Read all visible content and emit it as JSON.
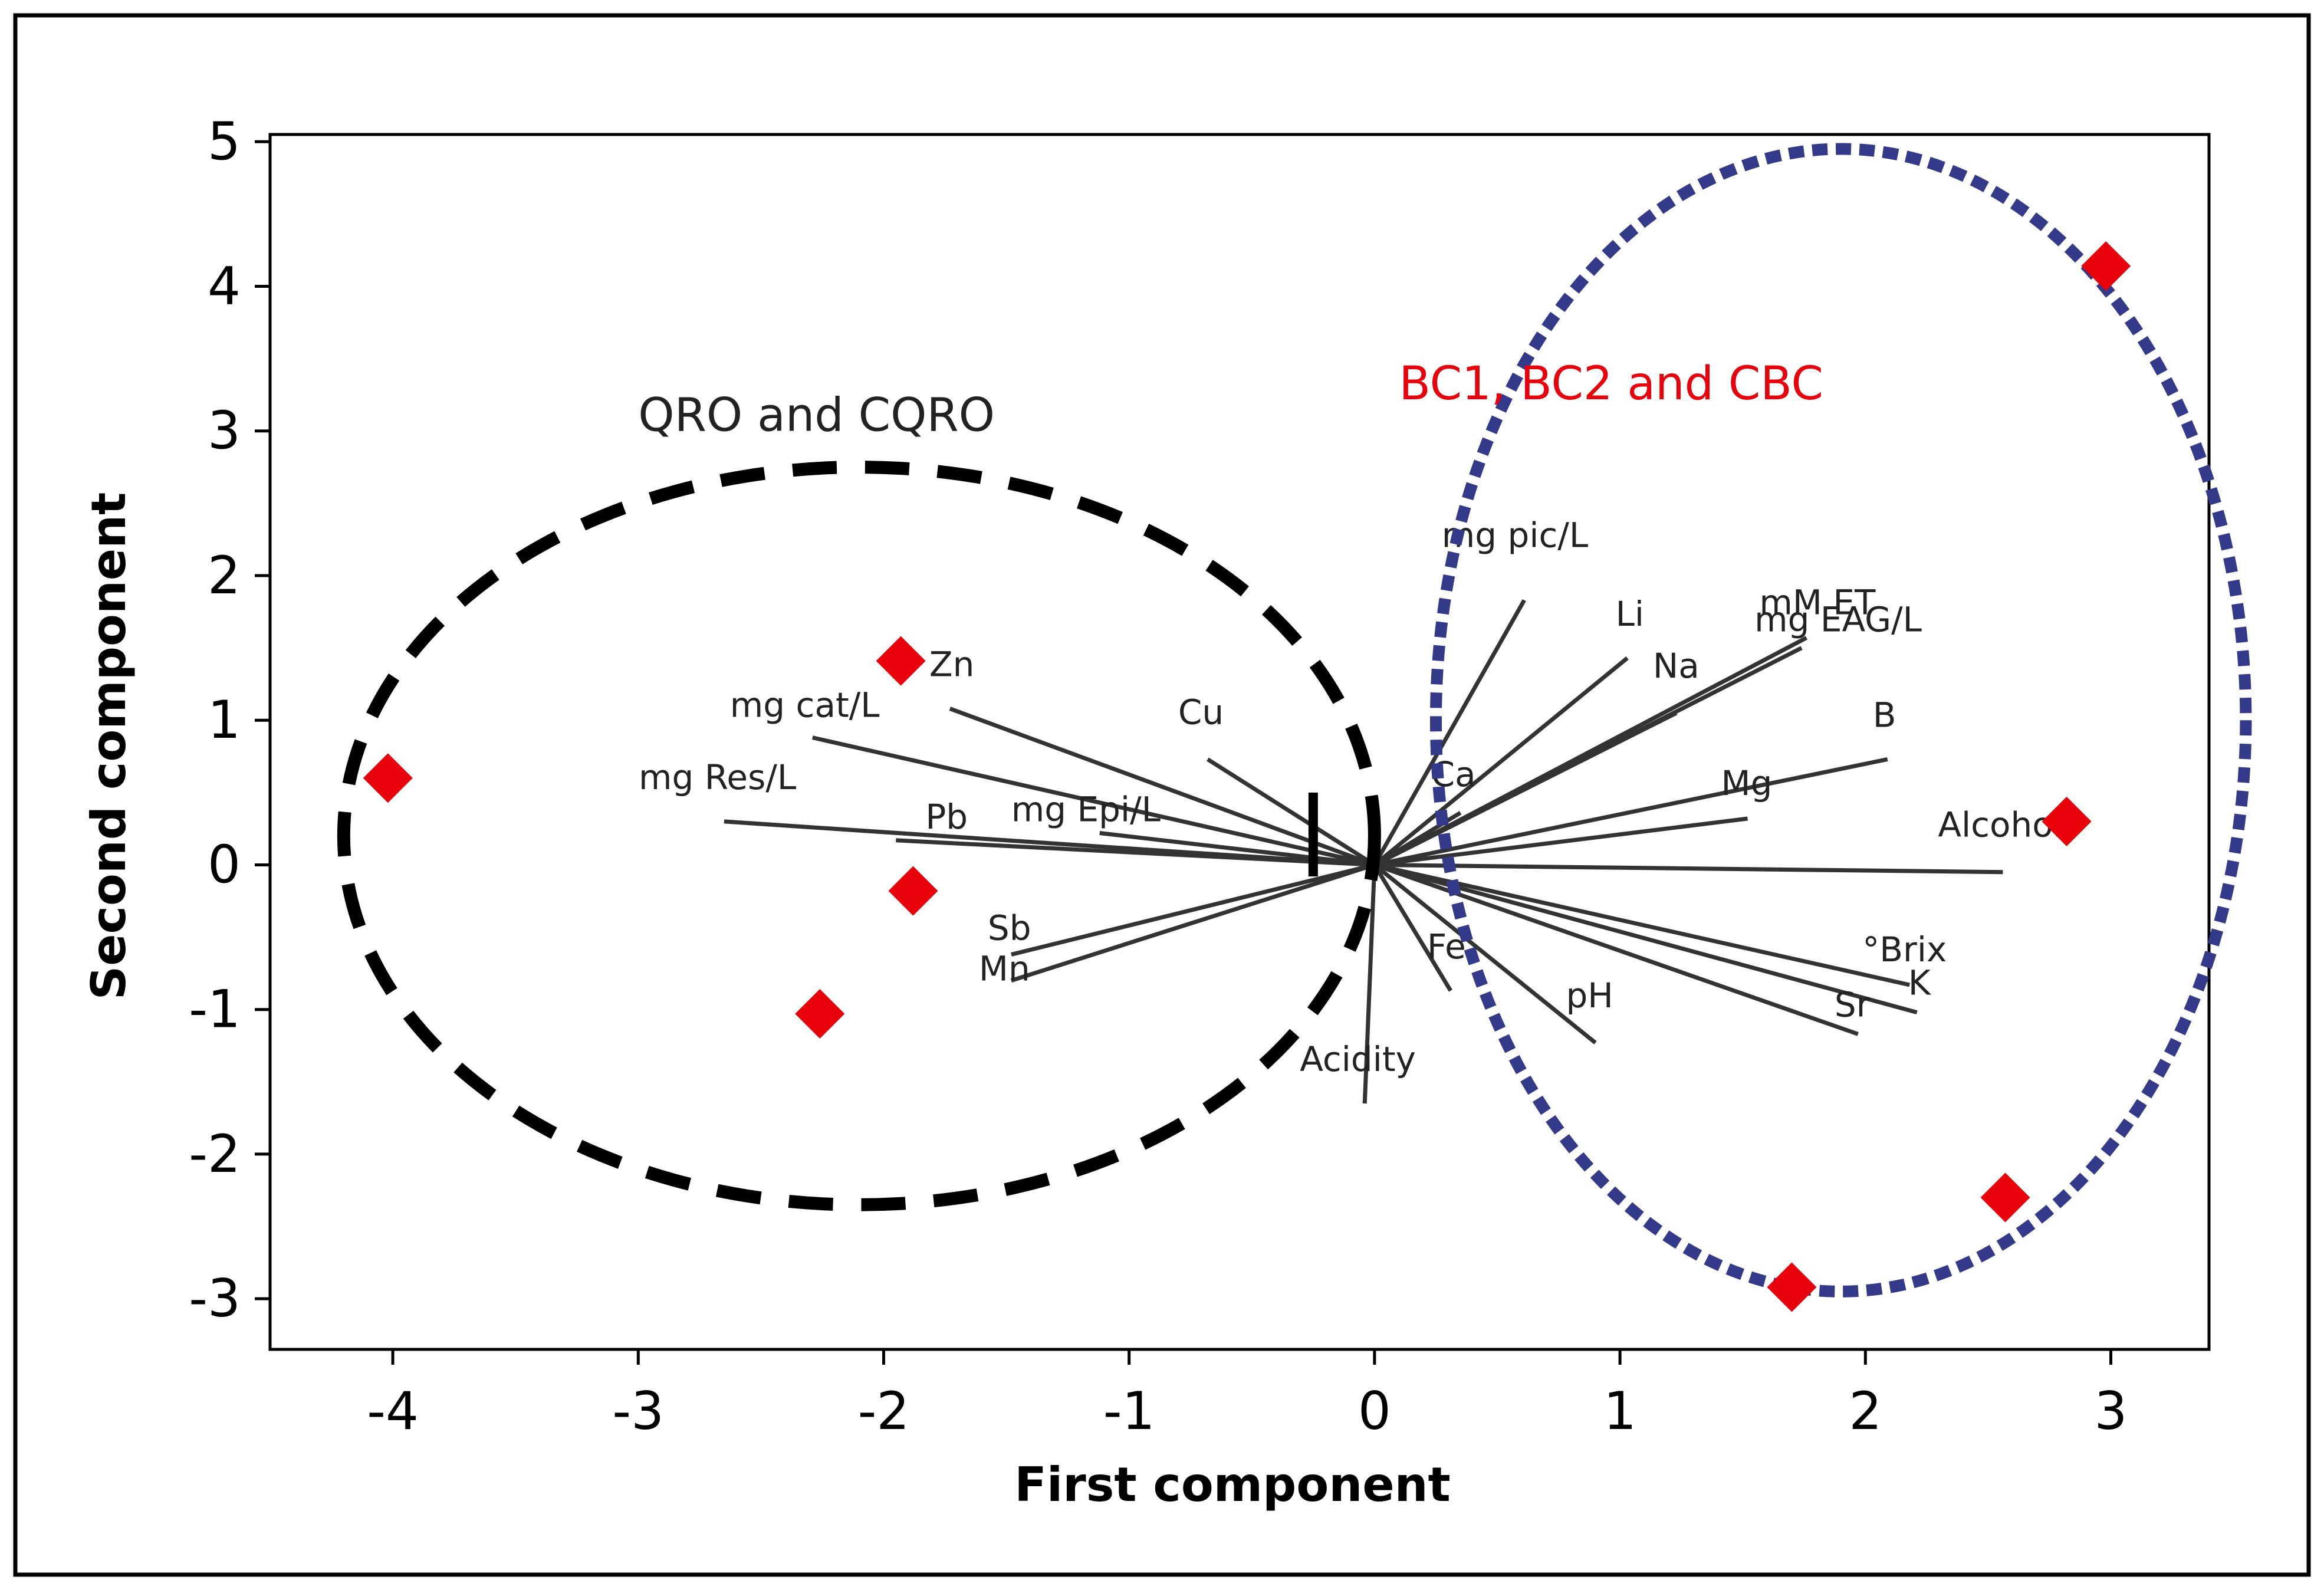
{
  "chart_data": {
    "type": "scatter",
    "subtype": "biplot",
    "xlabel": "First component",
    "ylabel": "Second component",
    "xlim": [
      -4.5,
      3.4
    ],
    "ylim": [
      -3.35,
      5.05
    ],
    "xticks": [
      -4,
      -3,
      -2,
      -1,
      0,
      1,
      2,
      3
    ],
    "yticks": [
      -3,
      -2,
      -1,
      0,
      1,
      2,
      3,
      4,
      5
    ],
    "grid": false,
    "colors": {
      "points": "#e8000b",
      "group_right": "#333a8a",
      "group_left": "#000000",
      "label_right": "#e8000b"
    },
    "groups": [
      {
        "name": "QRO and CQRO",
        "center": [
          -2.1,
          0.2
        ],
        "radius": [
          2.1,
          2.55
        ],
        "style": "dashed-black"
      },
      {
        "name": "BC1, BC2 and CBC",
        "center": [
          1.9,
          1.0
        ],
        "radius": [
          1.65,
          3.95
        ],
        "style": "dotted-blue"
      }
    ],
    "scores": [
      {
        "x": -4.02,
        "y": 0.6
      },
      {
        "x": -1.93,
        "y": 1.41
      },
      {
        "x": -1.88,
        "y": -0.18
      },
      {
        "x": -2.26,
        "y": -1.03
      },
      {
        "x": 2.98,
        "y": 4.14
      },
      {
        "x": 2.82,
        "y": 0.3
      },
      {
        "x": 2.57,
        "y": -2.3
      },
      {
        "x": 1.7,
        "y": -2.92
      }
    ],
    "loadings": [
      {
        "label": "mg pic/L",
        "x": 0.61,
        "y": 1.83
      },
      {
        "label": "mM ET",
        "x": 1.76,
        "y": 1.57
      },
      {
        "label": "mg EAG/L",
        "x": 1.74,
        "y": 1.5
      },
      {
        "label": "Li",
        "x": 1.03,
        "y": 1.43
      },
      {
        "label": "Na",
        "x": 1.23,
        "y": 1.05
      },
      {
        "label": "B",
        "x": 2.09,
        "y": 0.73
      },
      {
        "label": "Mg",
        "x": 1.52,
        "y": 0.32
      },
      {
        "label": "Ca",
        "x": 0.35,
        "y": 0.36
      },
      {
        "label": "Alcohol",
        "x": 2.56,
        "y": -0.05
      },
      {
        "label": "°Brix",
        "x": 2.18,
        "y": -0.83
      },
      {
        "label": "K",
        "x": 2.21,
        "y": -1.02
      },
      {
        "label": "Sr",
        "x": 1.97,
        "y": -1.17
      },
      {
        "label": "pH",
        "x": 0.9,
        "y": -1.23
      },
      {
        "label": "Fe",
        "x": 0.31,
        "y": -0.87
      },
      {
        "label": "Acidity",
        "x": -0.04,
        "y": -1.65
      },
      {
        "label": "Cu",
        "x": -0.68,
        "y": 0.73
      },
      {
        "label": "Zn",
        "x": -1.73,
        "y": 1.08
      },
      {
        "label": "mg cat/L",
        "x": -2.29,
        "y": 0.88
      },
      {
        "label": "mg Res/L",
        "x": -2.65,
        "y": 0.3
      },
      {
        "label": "Pb",
        "x": -1.95,
        "y": 0.17
      },
      {
        "label": "mg Epi/L",
        "x": -1.12,
        "y": 0.22
      },
      {
        "label": "Sb",
        "x": -1.48,
        "y": -0.62
      },
      {
        "label": "Mn",
        "x": -1.48,
        "y": -0.8
      }
    ]
  }
}
